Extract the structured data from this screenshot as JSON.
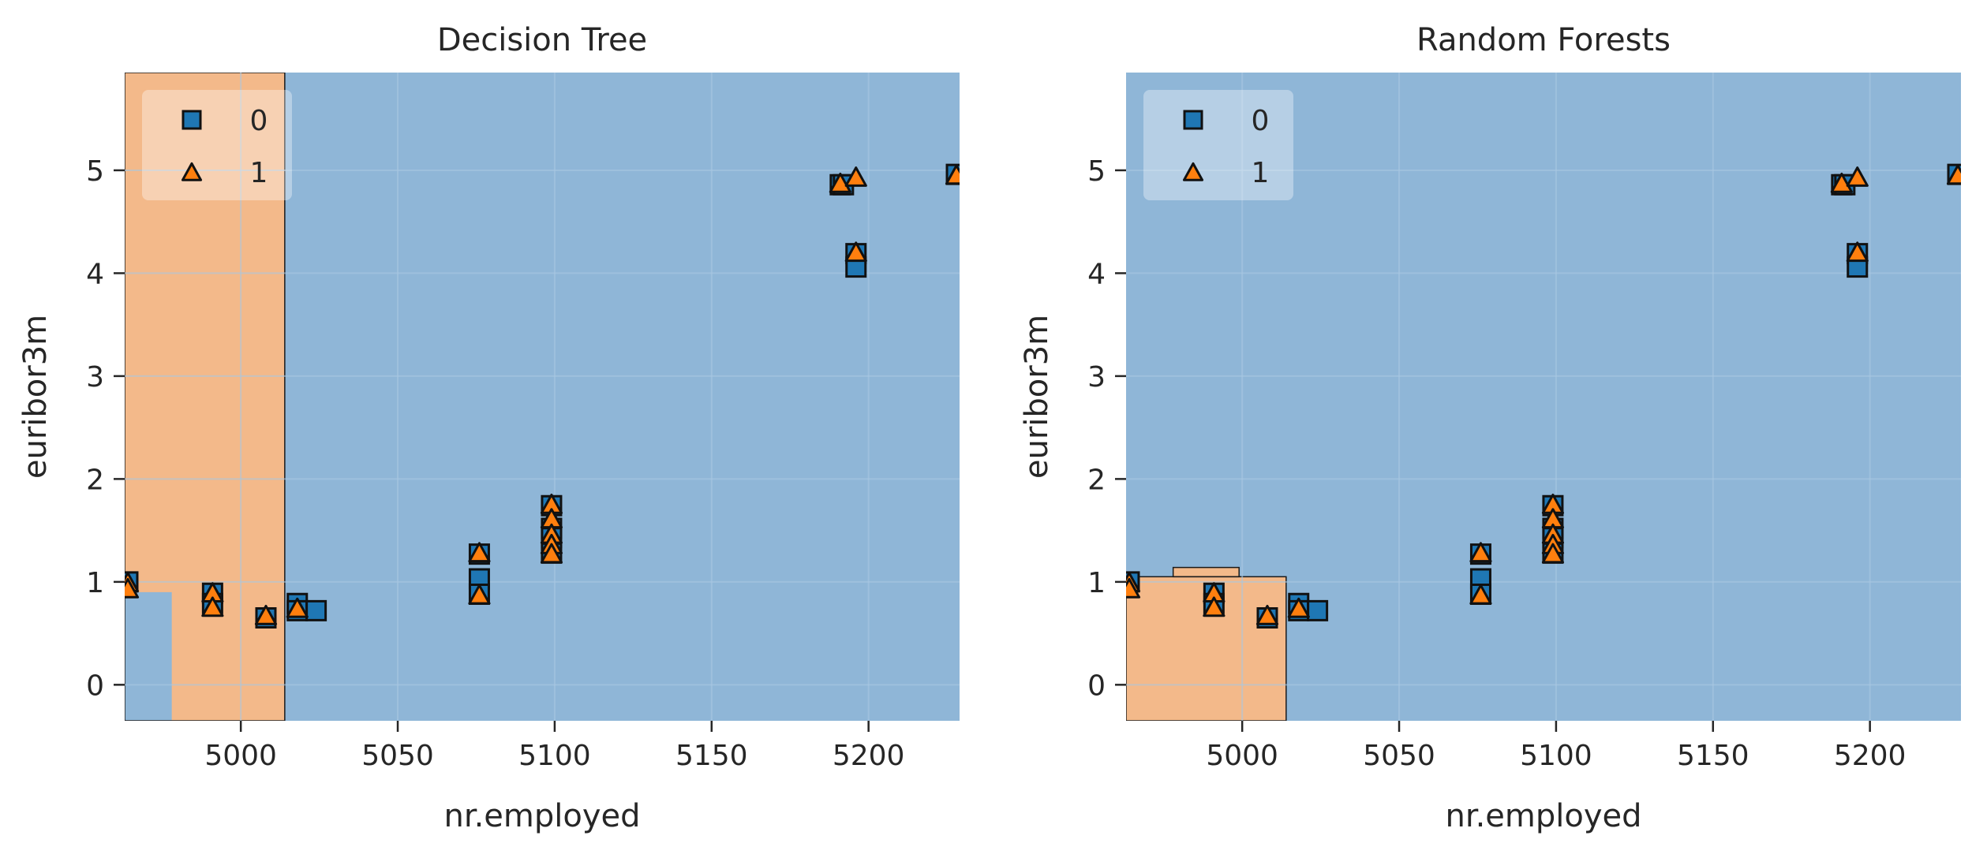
{
  "colors": {
    "class0_region": "#8fb6d7",
    "class1_region": "#f3b98a",
    "class0_marker": "#1f77b4",
    "class1_marker": "#ff7f0e",
    "grid": "#a9c8e2"
  },
  "chart_data": [
    {
      "type": "scatter",
      "title": "Decision Tree",
      "xlabel": "nr.employed",
      "ylabel": "euribor3m",
      "xlim": [
        4963,
        5229
      ],
      "ylim": [
        -0.35,
        5.95
      ],
      "xticks": [
        5000,
        5050,
        5100,
        5150,
        5200
      ],
      "yticks": [
        0,
        1,
        2,
        3,
        4,
        5
      ],
      "grid": true,
      "legend": {
        "placement": "top-left",
        "entries": [
          "0",
          "1"
        ]
      },
      "decision_regions": [
        {
          "class": 1,
          "x": [
            4963,
            5014
          ],
          "y": [
            -0.35,
            5.95
          ]
        },
        {
          "class": 0,
          "x": [
            5014,
            5229
          ],
          "y": [
            -0.35,
            5.95
          ]
        },
        {
          "class": 0,
          "x": [
            4963,
            4978
          ],
          "y": [
            -0.35,
            0.9
          ]
        }
      ],
      "series": [
        {
          "name": "0",
          "marker": "square",
          "points": [
            [
              4964,
              1.0
            ],
            [
              4991,
              0.89
            ],
            [
              4991,
              0.79
            ],
            [
              5008,
              0.65
            ],
            [
              5018,
              0.79
            ],
            [
              5018,
              0.72
            ],
            [
              5024,
              0.72
            ],
            [
              5076,
              1.27
            ],
            [
              5076,
              1.03
            ],
            [
              5076,
              0.88
            ],
            [
              5099,
              1.74
            ],
            [
              5099,
              1.52
            ],
            [
              5099,
              1.43
            ],
            [
              5099,
              1.28
            ],
            [
              5191,
              4.86
            ],
            [
              5192,
              4.86
            ],
            [
              5196,
              4.19
            ],
            [
              5196,
              4.06
            ],
            [
              5228,
              4.96
            ]
          ]
        },
        {
          "name": "1",
          "marker": "triangle",
          "points": [
            [
              4964,
              0.98
            ],
            [
              4964,
              0.92
            ],
            [
              4991,
              0.88
            ],
            [
              4991,
              0.74
            ],
            [
              5008,
              0.66
            ],
            [
              5018,
              0.73
            ],
            [
              5076,
              1.27
            ],
            [
              5076,
              0.86
            ],
            [
              5099,
              1.74
            ],
            [
              5099,
              1.6
            ],
            [
              5099,
              1.45
            ],
            [
              5099,
              1.35
            ],
            [
              5099,
              1.26
            ],
            [
              5191,
              4.86
            ],
            [
              5196,
              4.92
            ],
            [
              5196,
              4.19
            ],
            [
              5228,
              4.94
            ]
          ]
        }
      ]
    },
    {
      "type": "scatter",
      "title": "Random Forests",
      "xlabel": "nr.employed",
      "ylabel": "euribor3m",
      "xlim": [
        4963,
        5229
      ],
      "ylim": [
        -0.35,
        5.95
      ],
      "xticks": [
        5000,
        5050,
        5100,
        5150,
        5200
      ],
      "yticks": [
        0,
        1,
        2,
        3,
        4,
        5
      ],
      "grid": true,
      "legend": {
        "placement": "top-left",
        "entries": [
          "0",
          "1"
        ]
      },
      "decision_regions": [
        {
          "class": 0,
          "x": [
            4963,
            5229
          ],
          "y": [
            -0.35,
            5.95
          ]
        },
        {
          "class": 1,
          "x": [
            4963,
            5014
          ],
          "y": [
            -0.35,
            1.05
          ]
        },
        {
          "class": 1,
          "x": [
            4978,
            4999
          ],
          "y": [
            1.05,
            1.14
          ]
        }
      ],
      "series": [
        {
          "name": "0",
          "marker": "square",
          "points": [
            [
              4964,
              1.0
            ],
            [
              4991,
              0.89
            ],
            [
              4991,
              0.79
            ],
            [
              5008,
              0.65
            ],
            [
              5018,
              0.79
            ],
            [
              5018,
              0.72
            ],
            [
              5024,
              0.72
            ],
            [
              5076,
              1.27
            ],
            [
              5076,
              1.03
            ],
            [
              5076,
              0.88
            ],
            [
              5099,
              1.74
            ],
            [
              5099,
              1.52
            ],
            [
              5099,
              1.43
            ],
            [
              5099,
              1.28
            ],
            [
              5191,
              4.86
            ],
            [
              5192,
              4.86
            ],
            [
              5196,
              4.19
            ],
            [
              5196,
              4.06
            ],
            [
              5228,
              4.96
            ]
          ]
        },
        {
          "name": "1",
          "marker": "triangle",
          "points": [
            [
              4964,
              0.98
            ],
            [
              4964,
              0.92
            ],
            [
              4991,
              0.88
            ],
            [
              4991,
              0.74
            ],
            [
              5008,
              0.66
            ],
            [
              5018,
              0.73
            ],
            [
              5076,
              1.27
            ],
            [
              5076,
              0.86
            ],
            [
              5099,
              1.74
            ],
            [
              5099,
              1.6
            ],
            [
              5099,
              1.45
            ],
            [
              5099,
              1.35
            ],
            [
              5099,
              1.26
            ],
            [
              5191,
              4.86
            ],
            [
              5196,
              4.92
            ],
            [
              5196,
              4.19
            ],
            [
              5228,
              4.94
            ]
          ]
        }
      ]
    }
  ]
}
